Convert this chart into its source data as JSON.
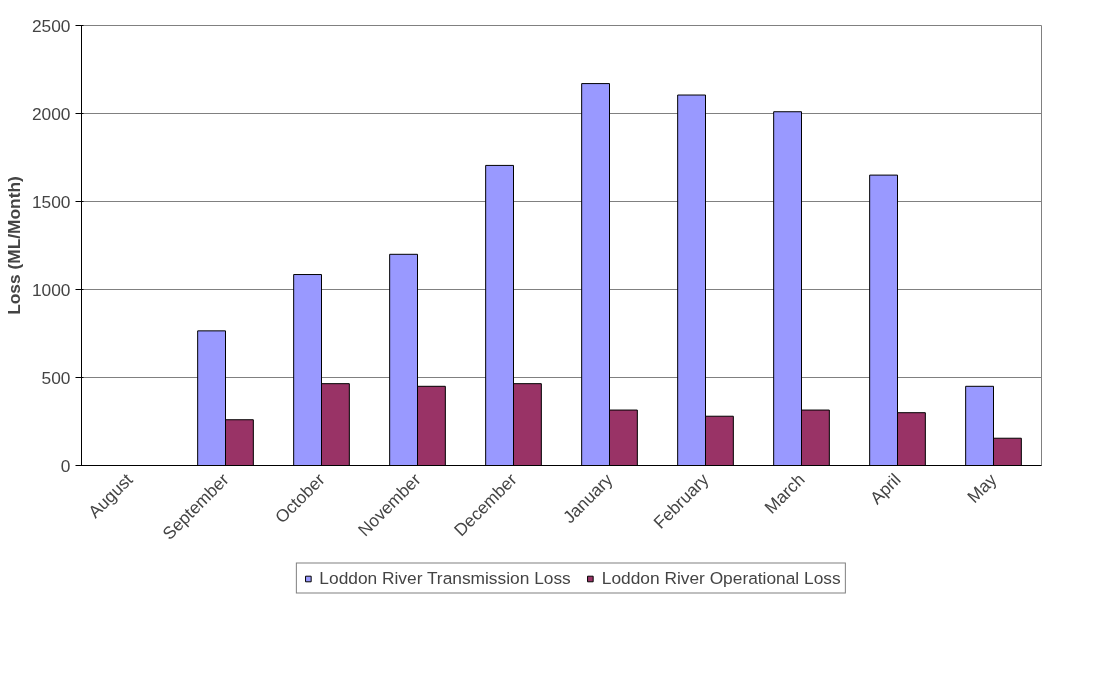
{
  "chart_data": {
    "type": "bar",
    "ylabel": "Loss (ML/Month)",
    "categories": [
      "August",
      "September",
      "October",
      "November",
      "December",
      "January",
      "February",
      "March",
      "April",
      "May"
    ],
    "series": [
      {
        "name": "Loddon River Transmission Loss",
        "color": "#9999ff",
        "values": [
          null,
          765,
          1085,
          1200,
          1705,
          2170,
          2105,
          2010,
          1650,
          450
        ]
      },
      {
        "name": "Loddon River Operational Loss",
        "color": "#993366",
        "values": [
          null,
          260,
          465,
          450,
          465,
          315,
          280,
          315,
          300,
          155
        ]
      }
    ],
    "ylim": [
      0,
      2500
    ],
    "yticks": [
      0,
      500,
      1000,
      1500,
      2000,
      2500
    ],
    "grid": "y",
    "legend": "bottom"
  }
}
